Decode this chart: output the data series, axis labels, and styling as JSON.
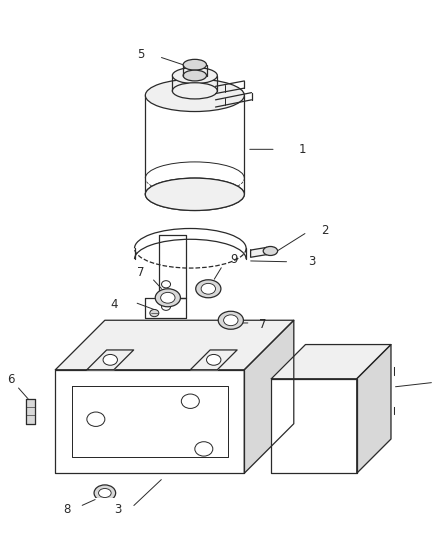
{
  "bg_color": "#ffffff",
  "line_color": "#2a2a2a",
  "label_color": "#2a2a2a",
  "figsize": [
    4.38,
    5.33
  ],
  "dpi": 100,
  "lw": 0.9
}
